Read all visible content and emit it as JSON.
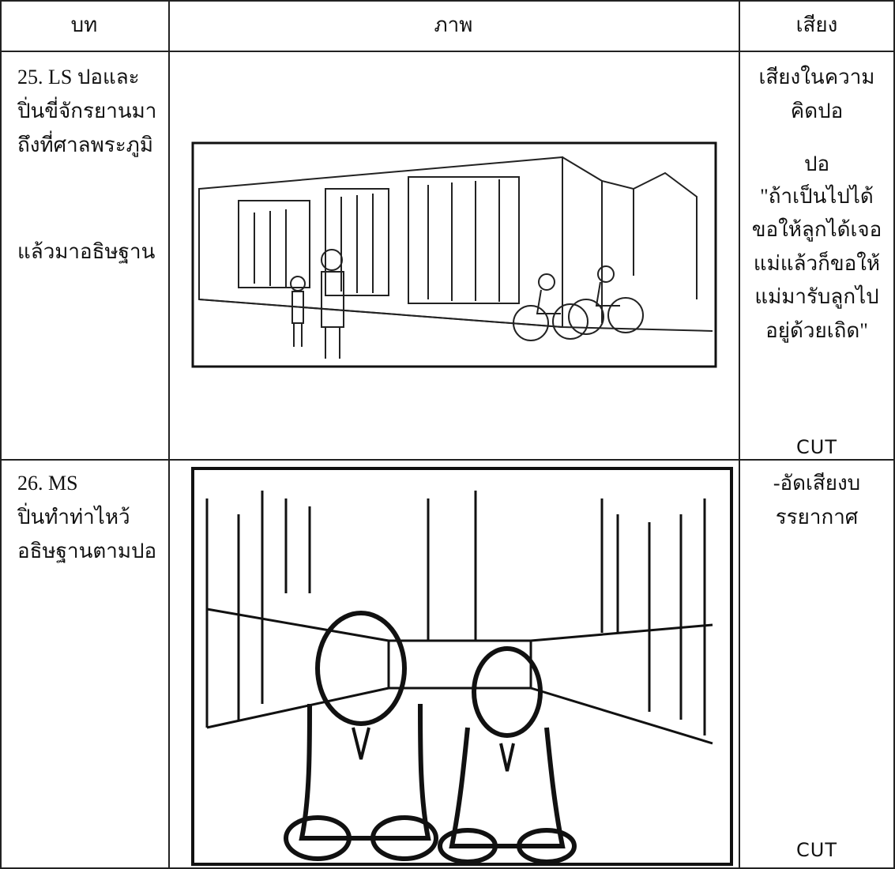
{
  "table": {
    "header": [
      "บท",
      "ภาพ",
      "เสียง"
    ],
    "rows": [
      {
        "script": [
          "25. LS ปอและ",
          "ปิ่นขี่จักรยานมา",
          "ถึงที่ศาลพระภูมิ",
          "แล้วมาอธิษฐาน"
        ],
        "sound": [
          "เสียงในความ",
          "คิดปอ",
          "ปอ",
          "\"ถ้าเป็นไปได้",
          "ขอให้ลูกได้เจอ",
          "แม่แล้วก็ขอให้",
          "แม่มารับลูกไป",
          "อยู่ด้วยเถิด\""
        ],
        "end": "CUT"
      },
      {
        "script": [
          "26. MS",
          "ปิ่นทำท่าไหว้",
          "อธิษฐานตามปอ"
        ],
        "sound": [
          "-อัดเสียงบ",
          "รรยากาศ"
        ],
        "end": "CUT"
      }
    ]
  }
}
